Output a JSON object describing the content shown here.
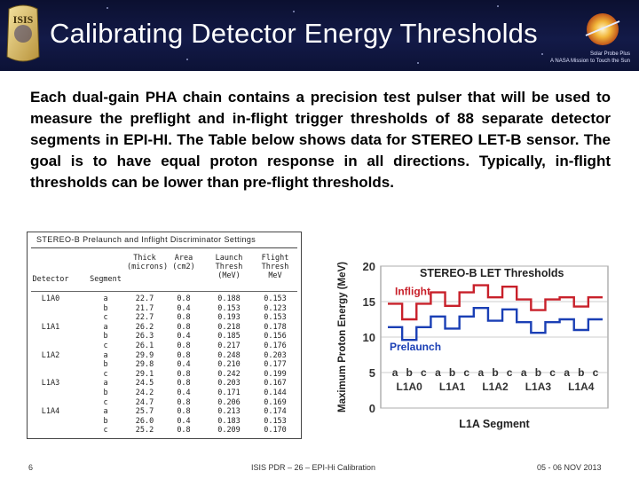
{
  "slide": {
    "title": "Calibrating Detector Energy Thresholds",
    "banner_sub_line1": "Solar Probe Plus",
    "banner_sub_line2": "A NASA Mission to Touch the Sun",
    "logo_left_text": "ISIS",
    "body": "Each dual-gain PHA chain contains a precision test pulser that will be used to measure the preflight and in-flight trigger thresholds of 88 separate detector segments in EPI-HI. The Table below shows data for STEREO LET-B sensor. The goal is to have equal proton response in all directions. Typically, in-flight thresholds can be lower than pre-flight thresholds.",
    "footer_page": "6",
    "footer_center": "ISIS PDR – 26 – EPI-Hi Calibration",
    "footer_date": "05 - 06 NOV 2013"
  },
  "table": {
    "title": "STEREO-B Prelaunch and Inflight Discriminator Settings",
    "headers": [
      "Detector",
      "Segment",
      "Thick (microns)",
      "Area (cm2)",
      "Launch Thresh (MeV)",
      "Flight Thresh MeV"
    ],
    "rows": [
      [
        "L1A0",
        "a",
        "22.7",
        "0.8",
        "0.188",
        "0.153"
      ],
      [
        "",
        "b",
        "21.7",
        "0.4",
        "0.153",
        "0.123"
      ],
      [
        "",
        "c",
        "22.7",
        "0.8",
        "0.193",
        "0.153"
      ],
      [
        "L1A1",
        "a",
        "26.2",
        "0.8",
        "0.218",
        "0.178"
      ],
      [
        "",
        "b",
        "26.3",
        "0.4",
        "0.185",
        "0.156"
      ],
      [
        "",
        "c",
        "26.1",
        "0.8",
        "0.217",
        "0.176"
      ],
      [
        "L1A2",
        "a",
        "29.9",
        "0.8",
        "0.248",
        "0.203"
      ],
      [
        "",
        "b",
        "29.8",
        "0.4",
        "0.210",
        "0.177"
      ],
      [
        "",
        "c",
        "29.1",
        "0.8",
        "0.242",
        "0.199"
      ],
      [
        "L1A3",
        "a",
        "24.5",
        "0.8",
        "0.203",
        "0.167"
      ],
      [
        "",
        "b",
        "24.2",
        "0.4",
        "0.171",
        "0.144"
      ],
      [
        "",
        "c",
        "24.7",
        "0.8",
        "0.206",
        "0.169"
      ],
      [
        "L1A4",
        "a",
        "25.7",
        "0.8",
        "0.213",
        "0.174"
      ],
      [
        "",
        "b",
        "26.0",
        "0.4",
        "0.183",
        "0.153"
      ],
      [
        "",
        "c",
        "25.2",
        "0.8",
        "0.209",
        "0.170"
      ]
    ]
  },
  "chart_data": {
    "type": "line",
    "title": "STEREO-B LET Thresholds",
    "ylabel": "Maximum Proton Energy (MeV)",
    "xlabel": "L1A Segment",
    "ylim": [
      0,
      20
    ],
    "yticks": [
      0,
      5,
      10,
      15,
      20
    ],
    "segments": [
      "L1A0",
      "L1A1",
      "L1A2",
      "L1A3",
      "L1A4"
    ],
    "subsegments": [
      "a",
      "b",
      "c"
    ],
    "series": [
      {
        "name": "Inflight",
        "color": "#c8202a",
        "values": [
          14.7,
          12.5,
          14.7,
          16.3,
          14.4,
          16.3,
          17.3,
          15.6,
          17.1,
          15.3,
          13.8,
          15.3,
          15.6,
          14.3,
          15.6
        ]
      },
      {
        "name": "Prelaunch",
        "color": "#1a3fb5",
        "values": [
          11.4,
          9.6,
          11.4,
          12.9,
          11.2,
          12.9,
          14.1,
          12.3,
          13.9,
          12.1,
          10.6,
          12.1,
          12.5,
          11.0,
          12.5
        ]
      }
    ],
    "grid": true
  }
}
